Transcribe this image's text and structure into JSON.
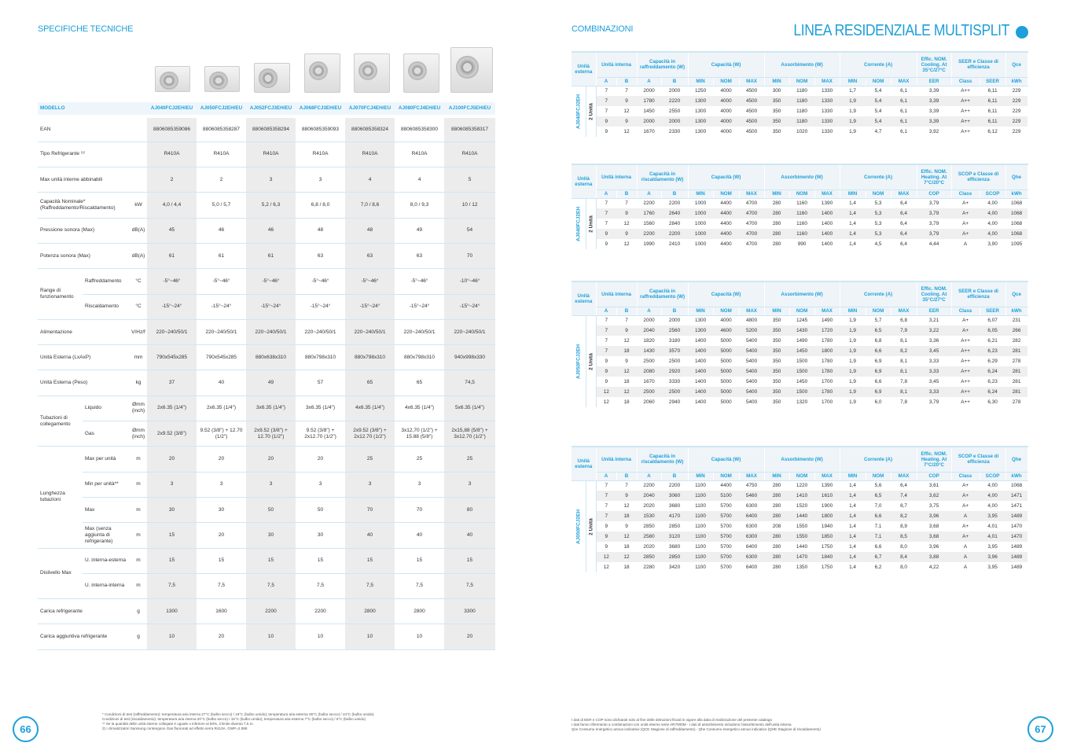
{
  "colors": {
    "accent": "#1e9fd9",
    "shade": "#ececec"
  },
  "left": {
    "section_title": "SPECIFICHE TECNICHE",
    "header_label": "MODELLO",
    "models": [
      "AJ040FCJ2EH/EU",
      "AJ050FCJ2EH/EU",
      "AJ052FCJ3EH/EU",
      "AJ068FCJ3EH/EU",
      "AJ070FCJ4EH/EU",
      "AJ080FCJ4EH/EU",
      "AJ100FCJ5EH/EU"
    ],
    "rows": [
      {
        "label": "EAN",
        "unit": "",
        "values": [
          "8806085359086",
          "8806085358287",
          "8806085358294",
          "8806085359093",
          "8806085358324",
          "8806085358300",
          "8806085358317"
        ]
      },
      {
        "label": "Tipo Refrigerante ⁽²⁾",
        "unit": "",
        "values": [
          "R410A",
          "R410A",
          "R410A",
          "R410A",
          "R410A",
          "R410A",
          "R410A"
        ]
      },
      {
        "label": "Max unità interne abbinabili",
        "unit": "",
        "values": [
          "2",
          "2",
          "3",
          "3",
          "4",
          "4",
          "5"
        ]
      },
      {
        "label": "Capacità Nominale* (Raffreddamento/Riscaldamento)",
        "unit": "kW",
        "values": [
          "4,0 / 4,4",
          "5,0 / 5,7",
          "5,2 / 6,3",
          "6,8 / 8,0",
          "7,0 / 8,6",
          "8,0 / 9,3",
          "10 / 12"
        ]
      },
      {
        "label": "Pressione sonora (Max)",
        "unit": "dB(A)",
        "values": [
          "45",
          "46",
          "46",
          "48",
          "48",
          "49",
          "54"
        ]
      },
      {
        "label": "Potenza sonora (Max)",
        "unit": "dB(A)",
        "values": [
          "61",
          "61",
          "61",
          "63",
          "63",
          "63",
          "70"
        ]
      },
      {
        "group": "Range di funzionamento",
        "span": 2,
        "label": "Raffreddamento",
        "unit": "°C",
        "values": [
          "-5°~46°",
          "-5°~46°",
          "-5°~46°",
          "-5°~46°",
          "-5°~46°",
          "-5°~46°",
          "-10°~46°"
        ]
      },
      {
        "label": "Riscaldamento",
        "unit": "°C",
        "values": [
          "-15°~24°",
          "-15°~24°",
          "-15°~24°",
          "-15°~24°",
          "-15°~24°",
          "-15°~24°",
          "-15°~24°"
        ]
      },
      {
        "label": "Alimentazione",
        "unit": "V/Hz/f",
        "values": [
          "220~240/50/1",
          "220~240/50/1",
          "220~240/50/1",
          "220~240/50/1",
          "220~240/50/1",
          "220~240/50/1",
          "220~240/50/1"
        ]
      },
      {
        "label": "Unità Esterna (LxAxP)",
        "unit": "mm",
        "values": [
          "790x545x285",
          "790x545x285",
          "880x638x310",
          "880x798x310",
          "880x798x310",
          "880x798x310",
          "940x998x330"
        ]
      },
      {
        "label": "Unità Esterna (Peso)",
        "unit": "kg",
        "values": [
          "37",
          "40",
          "49",
          "57",
          "65",
          "65",
          "74,5"
        ]
      },
      {
        "group": "Tubazioni di collegamento",
        "span": 2,
        "label": "Liquido",
        "unit": "Ømm (inch)",
        "values": [
          "2x6.35 (1/4\")",
          "2x6.35 (1/4\")",
          "3x6.35 (1/4\")",
          "3x6.35 (1/4\")",
          "4x6.35 (1/4\")",
          "4x6.35 (1/4\")",
          "5x6.35 (1/4\")"
        ]
      },
      {
        "label": "Gas",
        "unit": "Ømm (inch)",
        "values": [
          "2x9.52 (3/8\")",
          "9.52 (3/8\") + 12.70 (1/2\")",
          "2x9.52 (3/8\") + 12.70 (1/2\")",
          "9.52 (3/8\") + 2x12.70 (1/2\")",
          "2x9.52 (3/8\") + 2x12.70 (1/2\")",
          "3x12,70 (1/2\") + 15.88 (5/8\")",
          "2x15,88 (5/8\") + 3x12.70 (1/2\")"
        ]
      },
      {
        "group": "Lunghezza tubazioni",
        "span": 4,
        "label": "Max per unità",
        "unit": "m",
        "values": [
          "20",
          "20",
          "20",
          "20",
          "25",
          "25",
          "25"
        ]
      },
      {
        "label": "Min per unità**",
        "unit": "m",
        "values": [
          "3",
          "3",
          "3",
          "3",
          "3",
          "3",
          "3"
        ]
      },
      {
        "label": "Max",
        "unit": "m",
        "values": [
          "30",
          "30",
          "50",
          "50",
          "70",
          "70",
          "80"
        ]
      },
      {
        "label": "Max (senza aggiunta di refrigerante)",
        "unit": "m",
        "values": [
          "15",
          "20",
          "30",
          "30",
          "40",
          "40",
          "40"
        ]
      },
      {
        "group": "Dislivello Max",
        "span": 2,
        "label": "U. interna-esterna",
        "unit": "m",
        "values": [
          "15",
          "15",
          "15",
          "15",
          "15",
          "15",
          "15"
        ]
      },
      {
        "label": "U. interna-interna",
        "unit": "m",
        "values": [
          "7,5",
          "7,5",
          "7,5",
          "7,5",
          "7,5",
          "7,5",
          "7,5"
        ]
      },
      {
        "label": "Carica refrigerante",
        "unit": "g",
        "values": [
          "1300",
          "1600",
          "2200",
          "2200",
          "2800",
          "2800",
          "3300"
        ]
      },
      {
        "label": "Carica aggiuntiva refrigerante",
        "unit": "g",
        "values": [
          "10",
          "20",
          "10",
          "10",
          "10",
          "10",
          "20"
        ]
      }
    ],
    "footnotes": [
      "* Condizioni di test (raffreddamento): temperatura aria interna 27°C (bulbo secco) / 19°C (bulbo umido); temperatura aria esterna 35°C (bulbo secco) / 24°C (bulbo umido)",
      "Condizioni di test (riscaldamento): temperatura aria interna 20°C (bulbo secco) / 15°C (bulbo umido); temperatura aria esterna 7°C (bulbo secco) / 6°C (bulbo umido)",
      "** Se la quantità delle unità interne collegate è uguale o inferiore al 50%, il limite diventa 7,5 m.",
      "2)  I climatizzatori Samsung contengono Gas fluorurati ad effetto serra R410A. GWP=2.088"
    ],
    "page_number": "66"
  },
  "right": {
    "section_title": "COMBINAZIONI",
    "title": "LINEA RESIDENZIALE MULTISPLIT",
    "tables": [
      {
        "model": "AJ040FCJ2EH",
        "units": "2 Unità",
        "top": [
          "Unità esterna",
          "Unità interna",
          "Capacità in raffreddamento (W)",
          "Capacità (W)",
          "Assorbimento (W)",
          "Corrente (A)",
          "Effic. NOM. Cooling. At 35°C/27°C",
          "SEER e Classe di efficienza",
          "Qce"
        ],
        "sub": [
          "A",
          "B",
          "A",
          "B",
          "MIN",
          "NOM",
          "MAX",
          "MIN",
          "NOM",
          "MAX",
          "MIN",
          "NOM",
          "MAX",
          "EER",
          "Class",
          "SEER",
          "kWh"
        ],
        "rows": [
          [
            "7",
            "7",
            "2000",
            "2000",
            "1250",
            "4000",
            "4500",
            "300",
            "1180",
            "1330",
            "1,7",
            "5,4",
            "6,1",
            "3,39",
            "A++",
            "6,11",
            "229"
          ],
          [
            "7",
            "9",
            "1780",
            "2220",
            "1300",
            "4000",
            "4500",
            "350",
            "1180",
            "1330",
            "1,9",
            "5,4",
            "6,1",
            "3,39",
            "A++",
            "6,11",
            "229"
          ],
          [
            "7",
            "12",
            "1450",
            "2550",
            "1300",
            "4000",
            "4500",
            "350",
            "1180",
            "1330",
            "1,9",
            "5,4",
            "6,1",
            "3,39",
            "A++",
            "6,11",
            "229"
          ],
          [
            "9",
            "9",
            "2000",
            "2000",
            "1300",
            "4000",
            "4500",
            "350",
            "1180",
            "1330",
            "1,9",
            "5,4",
            "6,1",
            "3,39",
            "A++",
            "6,11",
            "229"
          ],
          [
            "9",
            "12",
            "1670",
            "2330",
            "1300",
            "4000",
            "4500",
            "350",
            "1020",
            "1330",
            "1,9",
            "4,7",
            "6,1",
            "3,92",
            "A++",
            "6,12",
            "229"
          ]
        ]
      },
      {
        "model": "AJ040FCJ2EH",
        "units": "2 Unità",
        "top": [
          "Unità esterna",
          "Unità interna",
          "Capacità in riscaldamento (W)",
          "Capacità (W)",
          "Assorbimento (W)",
          "Corrente (A)",
          "Effic. NOM. Heating. At 7°C/20°C",
          "SCOP e Classe di efficienza",
          "Qhe"
        ],
        "sub": [
          "A",
          "B",
          "A",
          "B",
          "MIN",
          "NOM",
          "MAX",
          "MIN",
          "NOM",
          "MAX",
          "MIN",
          "NOM",
          "MAX",
          "COP",
          "Class",
          "SCOP",
          "kWh"
        ],
        "rows": [
          [
            "7",
            "7",
            "2200",
            "2200",
            "1000",
            "4400",
            "4700",
            "280",
            "1160",
            "1390",
            "1,4",
            "5,3",
            "6,4",
            "3,79",
            "A+",
            "4,00",
            "1068"
          ],
          [
            "7",
            "9",
            "1760",
            "2640",
            "1000",
            "4400",
            "4700",
            "280",
            "1160",
            "1400",
            "1,4",
            "5,3",
            "6,4",
            "3,79",
            "A+",
            "4,00",
            "1068"
          ],
          [
            "7",
            "12",
            "1560",
            "2840",
            "1000",
            "4400",
            "4700",
            "280",
            "1160",
            "1400",
            "1,4",
            "5,3",
            "6,4",
            "3,79",
            "A+",
            "4,00",
            "1068"
          ],
          [
            "9",
            "9",
            "2200",
            "2200",
            "1000",
            "4400",
            "4700",
            "280",
            "1160",
            "1400",
            "1,4",
            "5,3",
            "6,4",
            "3,79",
            "A+",
            "4,00",
            "1068"
          ],
          [
            "9",
            "12",
            "1990",
            "2410",
            "1000",
            "4400",
            "4700",
            "280",
            "990",
            "1400",
            "1,4",
            "4,5",
            "6,4",
            "4,44",
            "A",
            "3,90",
            "1095"
          ]
        ]
      },
      {
        "model": "AJ050FCJ2EH",
        "units": "2 Unità",
        "top": [
          "Unità esterna",
          "Unità interna",
          "Capacità in raffreddamento (W)",
          "Capacità (W)",
          "Assorbimento (W)",
          "Corrente (A)",
          "Effic. NOM. Cooling. At 35°C/27°C",
          "SEER e Classe di efficienza",
          "Qce"
        ],
        "sub": [
          "A",
          "B",
          "A",
          "B",
          "MIN",
          "NOM",
          "MAX",
          "MIN",
          "NOM",
          "MAX",
          "MIN",
          "NOM",
          "MAX",
          "EER",
          "Class",
          "SEER",
          "kWh"
        ],
        "rows": [
          [
            "7",
            "7",
            "2000",
            "2000",
            "1300",
            "4000",
            "4800",
            "350",
            "1245",
            "1490",
            "1,9",
            "5,7",
            "6,8",
            "3,21",
            "A+",
            "6,07",
            "231"
          ],
          [
            "7",
            "9",
            "2040",
            "2560",
            "1300",
            "4600",
            "5200",
            "350",
            "1430",
            "1720",
            "1,9",
            "6,5",
            "7,9",
            "3,22",
            "A+",
            "6,05",
            "266"
          ],
          [
            "7",
            "12",
            "1820",
            "3180",
            "1400",
            "5000",
            "5400",
            "350",
            "1490",
            "1780",
            "1,9",
            "6,8",
            "8,1",
            "3,36",
            "A++",
            "6,21",
            "282"
          ],
          [
            "7",
            "18",
            "1430",
            "3570",
            "1400",
            "5000",
            "5400",
            "350",
            "1450",
            "1800",
            "1,9",
            "6,6",
            "8,2",
            "3,45",
            "A++",
            "6,23",
            "281"
          ],
          [
            "9",
            "9",
            "2500",
            "2500",
            "1400",
            "5000",
            "5400",
            "350",
            "1500",
            "1780",
            "1,9",
            "6,9",
            "8,1",
            "3,33",
            "A++",
            "6,29",
            "278"
          ],
          [
            "9",
            "12",
            "2080",
            "2920",
            "1400",
            "5000",
            "5400",
            "350",
            "1500",
            "1780",
            "1,9",
            "6,9",
            "8,1",
            "3,33",
            "A++",
            "6,24",
            "281"
          ],
          [
            "9",
            "18",
            "1670",
            "3330",
            "1400",
            "5000",
            "5400",
            "350",
            "1450",
            "1700",
            "1,9",
            "6,6",
            "7,8",
            "3,45",
            "A++",
            "6,23",
            "281"
          ],
          [
            "12",
            "12",
            "2500",
            "2500",
            "1400",
            "5000",
            "5400",
            "350",
            "1500",
            "1780",
            "1,9",
            "6,9",
            "8,1",
            "3,33",
            "A++",
            "6,24",
            "281"
          ],
          [
            "12",
            "18",
            "2060",
            "2940",
            "1400",
            "5000",
            "5400",
            "350",
            "1320",
            "1700",
            "1,9",
            "6,0",
            "7,8",
            "3,79",
            "A++",
            "6,30",
            "278"
          ]
        ]
      },
      {
        "model": "AJ050FCJ2EH",
        "units": "2 Unità",
        "top": [
          "Unità esterna",
          "Unità interna",
          "Capacità in riscaldamento (W)",
          "Capacità (W)",
          "Assorbimento (W)",
          "Corrente (A)",
          "Effic. NOM. Heating. At 7°C/20°C",
          "SCOP e Classe di efficienza",
          "Qhe"
        ],
        "sub": [
          "A",
          "B",
          "A",
          "B",
          "MIN",
          "NOM",
          "MAX",
          "MIN",
          "NOM",
          "MAX",
          "MIN",
          "NOM",
          "MAX",
          "COP",
          "Class",
          "SCOP",
          "kWh"
        ],
        "rows": [
          [
            "7",
            "7",
            "2200",
            "2200",
            "1100",
            "4400",
            "4750",
            "280",
            "1220",
            "1390",
            "1,4",
            "5,6",
            "6,4",
            "3,61",
            "A+",
            "4,00",
            "1068"
          ],
          [
            "7",
            "9",
            "2040",
            "3060",
            "1100",
            "5100",
            "5460",
            "280",
            "1410",
            "1610",
            "1,4",
            "6,5",
            "7,4",
            "3,62",
            "A+",
            "4,00",
            "1471"
          ],
          [
            "7",
            "12",
            "2020",
            "3680",
            "1100",
            "5700",
            "6300",
            "280",
            "1520",
            "1900",
            "1,4",
            "7,0",
            "8,7",
            "3,75",
            "A+",
            "4,00",
            "1471"
          ],
          [
            "7",
            "18",
            "1530",
            "4170",
            "1100",
            "5700",
            "6400",
            "280",
            "1440",
            "1800",
            "1,4",
            "6,6",
            "8,2",
            "3,96",
            "A",
            "3,95",
            "1489"
          ],
          [
            "9",
            "9",
            "2850",
            "2850",
            "1100",
            "5700",
            "6300",
            "208",
            "1550",
            "1940",
            "1,4",
            "7,1",
            "8,9",
            "3,68",
            "A+",
            "4,01",
            "1470"
          ],
          [
            "9",
            "12",
            "2580",
            "3120",
            "1100",
            "5700",
            "6300",
            "280",
            "1550",
            "1850",
            "1,4",
            "7,1",
            "8,5",
            "3,68",
            "A+",
            "4,01",
            "1470"
          ],
          [
            "9",
            "18",
            "2020",
            "3680",
            "1100",
            "5700",
            "6400",
            "280",
            "1440",
            "1750",
            "1,4",
            "6,6",
            "8,0",
            "3,96",
            "A",
            "3,95",
            "1489"
          ],
          [
            "12",
            "12",
            "2850",
            "2850",
            "1100",
            "5700",
            "6300",
            "280",
            "1470",
            "1840",
            "1,4",
            "6,7",
            "8,4",
            "3,88",
            "A",
            "3,96",
            "1489"
          ],
          [
            "12",
            "18",
            "2280",
            "3420",
            "1100",
            "5700",
            "6400",
            "280",
            "1350",
            "1750",
            "1,4",
            "6,2",
            "8,0",
            "4,22",
            "A",
            "3,95",
            "1489"
          ]
        ]
      }
    ],
    "footnotes": [
      "I dati di EER e COP sono dichiarati solo al fine delle detrazioni fiscali in vigore alla data di realizzazione del presente catalogo",
      "I dati fanno riferimento a combinazioni con unità interne serie AR7000M - I dati di assorbimento includono l'assorbimento dell'unità interna",
      "Qce Consumo energetico annuo indicativo (QCE Stagione di raffreddamento) - Qhe Consumo energetico annuo indicativo (QHE Stagione di riscaldamento)"
    ],
    "page_number": "67"
  }
}
